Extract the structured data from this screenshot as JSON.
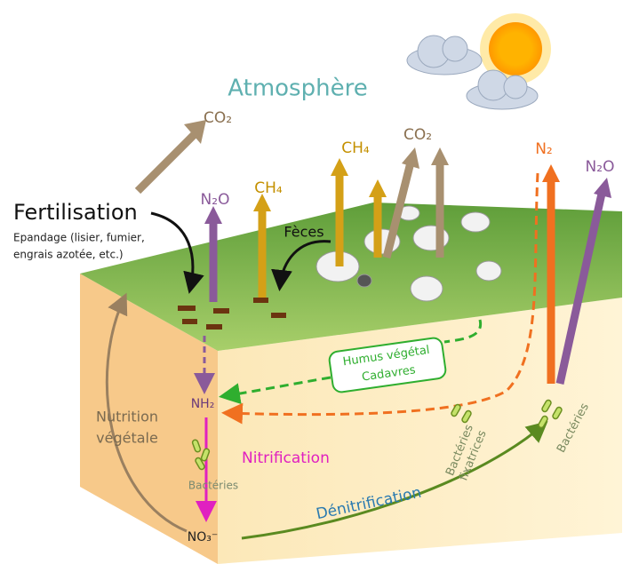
{
  "title": "Atmosphère",
  "gases": {
    "co2_left": "CO₂",
    "n2o_left": "N₂O",
    "ch4_left": "CH₄",
    "ch4_mid": "CH₄",
    "co2_mid": "CO₂",
    "n2": "N₂",
    "n2o_right": "N₂O"
  },
  "fertilisation": {
    "title": "Fertilisation",
    "details": [
      "Epandage (lisier, fumier,",
      "engrais azotée, etc.)"
    ]
  },
  "feces": "Fèces",
  "humus": [
    "Humus végétal",
    "Cadavres"
  ],
  "nh2": "NH₂",
  "nitrification": "Nitrification",
  "bacteria_nitrif": "Bactéries",
  "no3": "NO₃⁻",
  "nutrition": [
    "Nutrition",
    "végétale"
  ],
  "denitrification": "Dénitrification",
  "bacteria_fix": [
    "Bactéries",
    "fixatrices"
  ],
  "bacteria_denitrif": "Bactéries"
}
